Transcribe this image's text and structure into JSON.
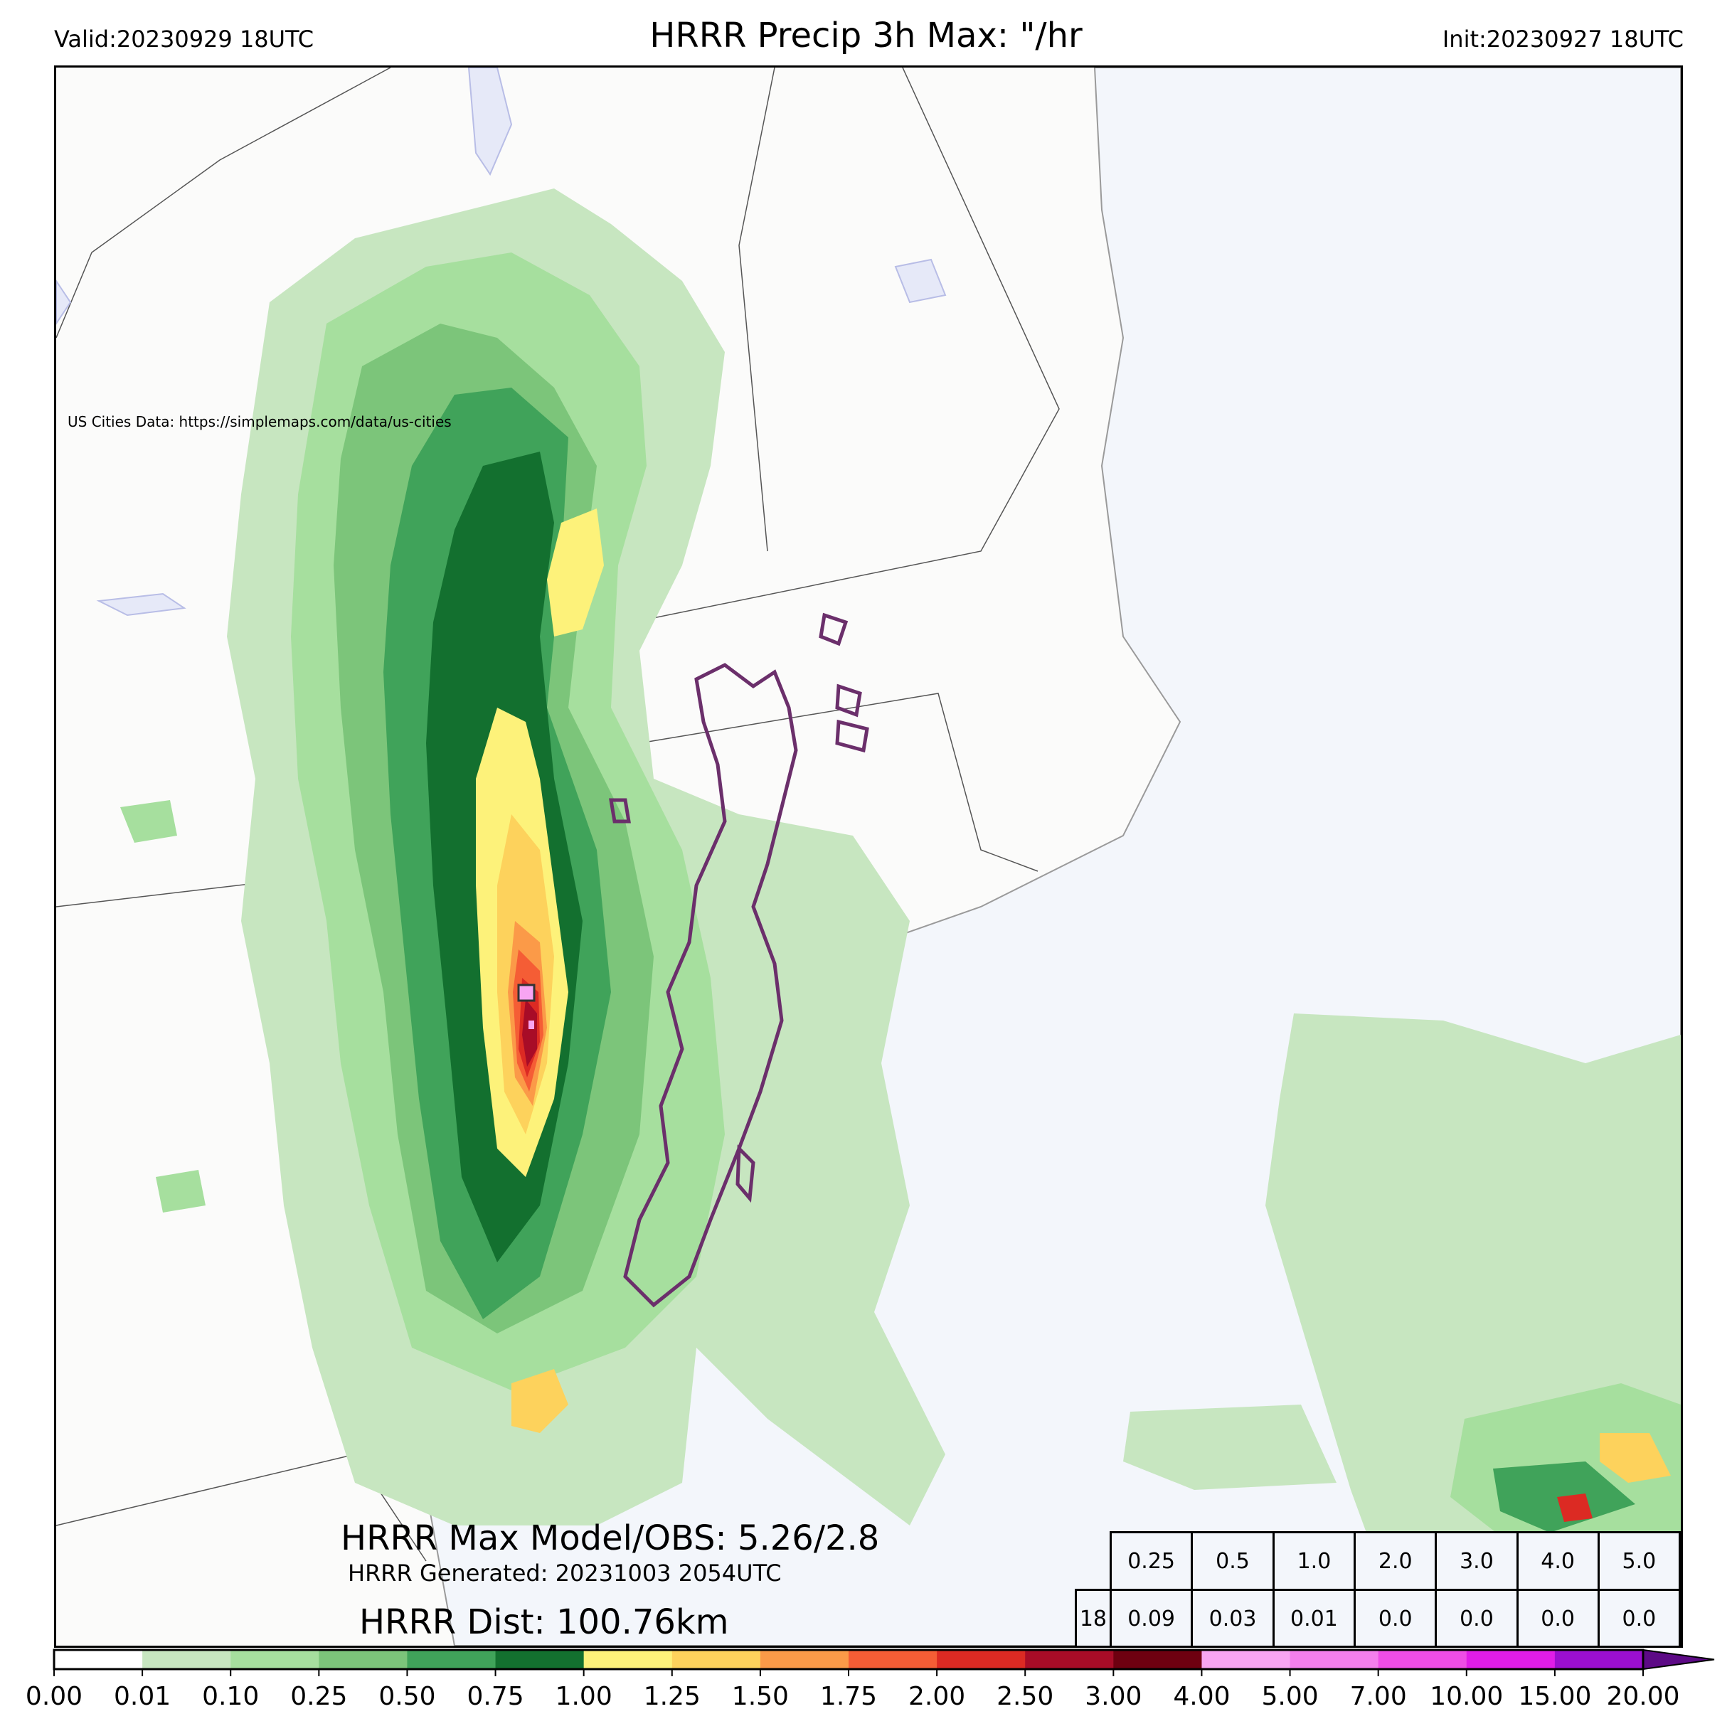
{
  "header": {
    "valid": "Valid:20230929 18UTC",
    "title": "HRRR Precip 3h Max: \"/hr",
    "init": "Init:20230927 18UTC"
  },
  "map": {
    "credit": "US Cities Data: https://simplemaps.com/data/us-cities",
    "ocean_color": "#f3f6fb",
    "land_color": "#fbfbfa"
  },
  "annotations": {
    "max_line": "HRRR Max Model/OBS: 5.26/2.8",
    "generated_line": "HRRR Generated: 20231003 2054UTC",
    "dist_line": "HRRR Dist: 100.76km"
  },
  "threshold_table": {
    "thresholds": [
      "0.25",
      "0.5",
      "1.0",
      "2.0",
      "3.0",
      "4.0",
      "5.0"
    ],
    "row_label": "18",
    "values": [
      "0.09",
      "0.03",
      "0.01",
      "0.0",
      "0.0",
      "0.0",
      "0.0"
    ]
  },
  "colorbar": {
    "ticks": [
      "0.00",
      "0.01",
      "0.10",
      "0.25",
      "0.50",
      "0.75",
      "1.00",
      "1.25",
      "1.50",
      "1.75",
      "2.00",
      "2.50",
      "3.00",
      "4.00",
      "5.00",
      "7.00",
      "10.00",
      "15.00",
      "20.00"
    ],
    "colors": [
      "#ffffff",
      "#c7e6c0",
      "#a6df9e",
      "#7cc57a",
      "#40a35a",
      "#13702f",
      "#fdf27a",
      "#fdd25c",
      "#fb9a48",
      "#f55d35",
      "#dc2a23",
      "#a80c27",
      "#6e0010",
      "#f8a5f2",
      "#f47fec",
      "#ef4de6",
      "#e01de8",
      "#9b0fd0"
    ],
    "extend_color": "#5d0a86"
  }
}
